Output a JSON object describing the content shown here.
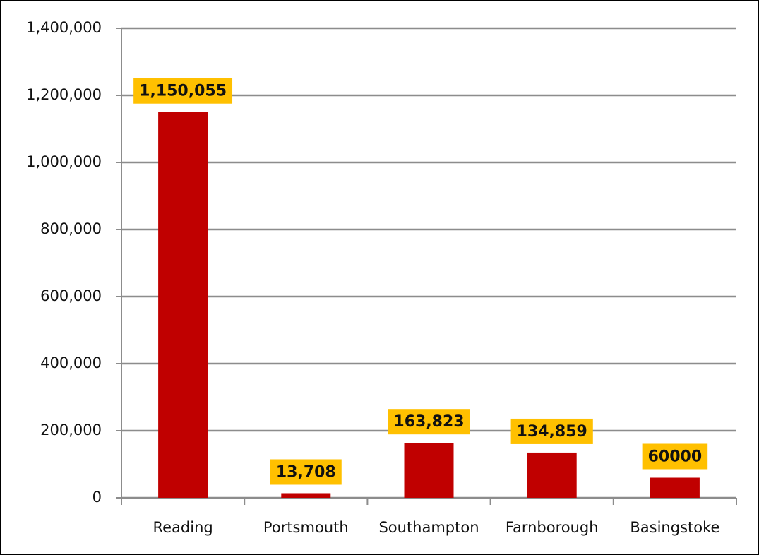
{
  "chart_data": {
    "type": "bar",
    "categories": [
      "Reading",
      "Portsmouth",
      "Southampton",
      "Farnborough",
      "Basingstoke"
    ],
    "values": [
      1150055,
      13708,
      163823,
      134859,
      60000
    ],
    "value_labels": [
      "1,150,055",
      "13,708",
      "163,823",
      "134,859",
      "60000"
    ],
    "color": "#c00000",
    "label_color": "#ffc000",
    "ylim": [
      0,
      1400000
    ],
    "yticks": [
      0,
      {
        "value": 200000,
        "label": "200,000"
      },
      {
        "value": 400000,
        "label": "400,000"
      },
      {
        "value": 600000,
        "label": "600,000"
      },
      {
        "value": 800000,
        "label": "800,000"
      },
      {
        "value": 1000000,
        "label": "1,000,000"
      },
      {
        "value": 1200000,
        "label": "1,200,000"
      },
      {
        "value": 1400000,
        "label": "1,400,000"
      }
    ],
    "grid": true
  }
}
